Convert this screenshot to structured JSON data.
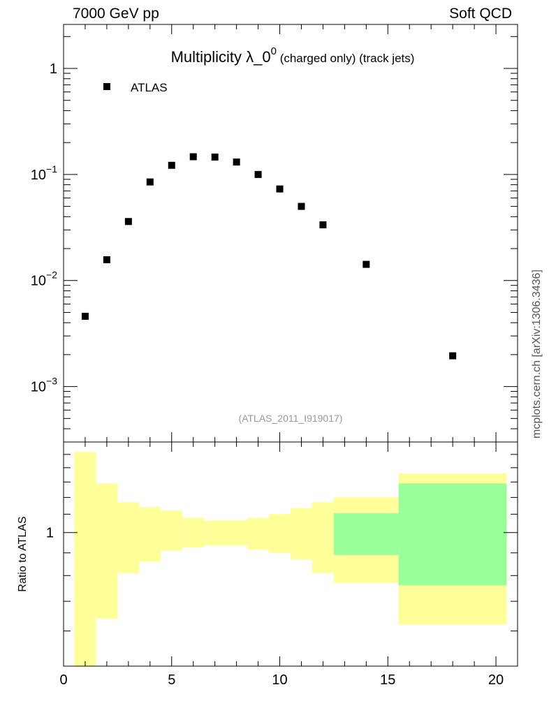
{
  "header": {
    "left": "7000 GeV pp",
    "right": "Soft QCD"
  },
  "side_label": "mcplots.cern.ch [arXiv:1306.3436]",
  "colors": {
    "band_outer": "#ffff99",
    "band_inner": "#99ff99",
    "marker": "#000000",
    "watermark": "#999999"
  },
  "chart_data": [
    {
      "type": "scatter",
      "title_main": "Multiplicity λ_0",
      "title_sup": "0",
      "title_small": " (charged only) (track jets)",
      "watermark": "(ATLAS_2011_I919017)",
      "yscale": "log",
      "xlim": [
        0,
        21
      ],
      "ylim": [
        0.0003,
        2.6
      ],
      "yticks": [
        {
          "value": 1,
          "label": "1"
        },
        {
          "value": 0.1,
          "label": "10",
          "sup": "−1"
        },
        {
          "value": 0.01,
          "label": "10",
          "sup": "−2"
        },
        {
          "value": 0.001,
          "label": "10",
          "sup": "−3"
        }
      ],
      "legend": {
        "position": "top-left",
        "entries": [
          "ATLAS"
        ]
      },
      "series": [
        {
          "name": "ATLAS",
          "x": [
            1,
            2,
            3,
            4,
            5,
            6,
            7,
            8,
            9,
            10,
            11,
            12,
            14,
            18
          ],
          "y": [
            0.0046,
            0.0157,
            0.036,
            0.085,
            0.122,
            0.147,
            0.146,
            0.131,
            0.1,
            0.073,
            0.05,
            0.0335,
            0.0142,
            0.00195
          ]
        }
      ]
    },
    {
      "type": "area",
      "ylabel": "Ratio to ATLAS",
      "yscale": "log",
      "xlim": [
        0,
        21
      ],
      "ylim": [
        0.5,
        1.6
      ],
      "yticks": [
        {
          "value": 1,
          "label": "1"
        }
      ],
      "xticks": [
        0,
        5,
        10,
        15,
        20
      ],
      "bands": [
        {
          "x0": 0.5,
          "x1": 1.5,
          "lo": 0.5,
          "hi": 1.52
        },
        {
          "x0": 1.5,
          "x1": 2.5,
          "lo": 0.64,
          "hi": 1.29
        },
        {
          "x0": 2.5,
          "x1": 3.5,
          "lo": 0.81,
          "hi": 1.17
        },
        {
          "x0": 3.5,
          "x1": 4.5,
          "lo": 0.86,
          "hi": 1.14
        },
        {
          "x0": 4.5,
          "x1": 5.5,
          "lo": 0.91,
          "hi": 1.12
        },
        {
          "x0": 5.5,
          "x1": 6.5,
          "lo": 0.925,
          "hi": 1.08
        },
        {
          "x0": 6.5,
          "x1": 8.5,
          "lo": 0.935,
          "hi": 1.065
        },
        {
          "x0": 8.5,
          "x1": 9.5,
          "lo": 0.915,
          "hi": 1.08
        },
        {
          "x0": 9.5,
          "x1": 10.5,
          "lo": 0.9,
          "hi": 1.1
        },
        {
          "x0": 10.5,
          "x1": 11.5,
          "lo": 0.87,
          "hi": 1.135
        },
        {
          "x0": 11.5,
          "x1": 12.5,
          "lo": 0.81,
          "hi": 1.17
        },
        {
          "x0": 12.5,
          "x1": 15.5,
          "lo": 0.77,
          "hi": 1.2
        },
        {
          "x0": 15.5,
          "x1": 20.5,
          "lo": 0.62,
          "hi": 1.36
        }
      ],
      "inner_bands": [
        {
          "x0": 12.5,
          "x1": 15.5,
          "lo": 0.89,
          "hi": 1.105
        },
        {
          "x0": 15.5,
          "x1": 20.5,
          "lo": 0.76,
          "hi": 1.29
        }
      ]
    }
  ]
}
